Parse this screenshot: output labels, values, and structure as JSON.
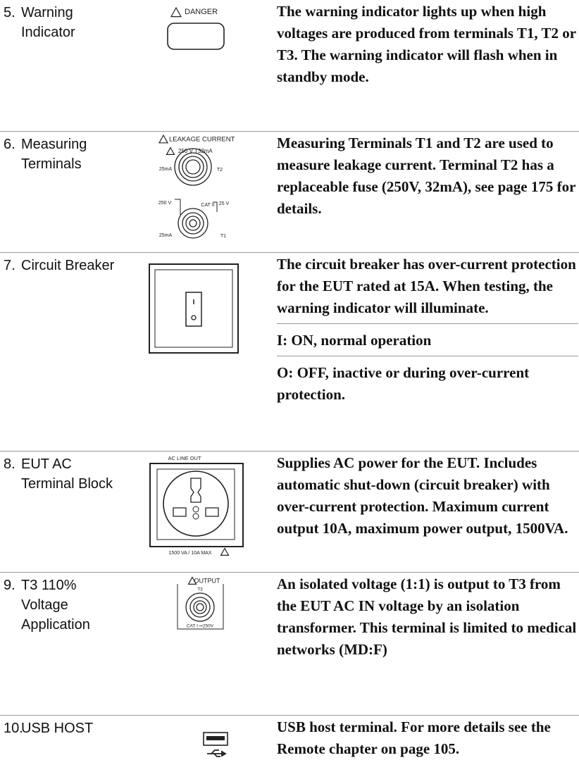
{
  "rows": [
    {
      "number": "5.",
      "name": "Warning Indicator",
      "icon_labels": [
        "DANGER"
      ],
      "description": [
        "The warning indicator lights up when high voltages are produced from terminals T1, T2 or T3. The warning indicator will flash when in standby mode."
      ]
    },
    {
      "number": "6.",
      "name": "Measuring Terminals",
      "icon_labels": [
        "LEAKAGE CURRENT",
        "250 V  T32mA",
        "25mA",
        "T2",
        "250 V",
        "CAT II",
        "25 V",
        "25mA",
        "T1"
      ],
      "description": [
        "Measuring Terminals T1 and T2 are used to measure leakage current. Terminal T2 has a replaceable fuse (250V, 32mA), see page 175 for details."
      ]
    },
    {
      "number": "7.",
      "name": "Circuit Breaker",
      "icon_labels": [],
      "description": [
        "The circuit breaker has over-current protection for the EUT rated at 15A. When testing, the warning indicator will illuminate.",
        "I: ON, normal operation",
        "O: OFF, inactive or during over-current protection."
      ]
    },
    {
      "number": "8.",
      "name": "EUT AC Terminal Block",
      "icon_labels": [
        "AC LINE OUT",
        "1500 VA / 10A  MAX"
      ],
      "description": [
        "Supplies AC power for the EUT. Includes automatic shut-down (circuit breaker) with over-current protection. Maximum current output 10A, maximum power output, 1500VA."
      ]
    },
    {
      "number": "9.",
      "name": "T3 110% Voltage Application",
      "icon_labels": [
        "OUTPUT",
        "T3",
        "CAT I ⎓250V"
      ],
      "description": [
        "An isolated voltage (1:1) is output to T3 from the EUT AC IN voltage by an isolation transformer. This terminal is limited to medical networks (MD:F)"
      ]
    },
    {
      "number": "10.",
      "name": "USB HOST",
      "icon_labels": [],
      "description": [
        "USB host terminal. For more details see the Remote chapter on page 105."
      ]
    }
  ]
}
